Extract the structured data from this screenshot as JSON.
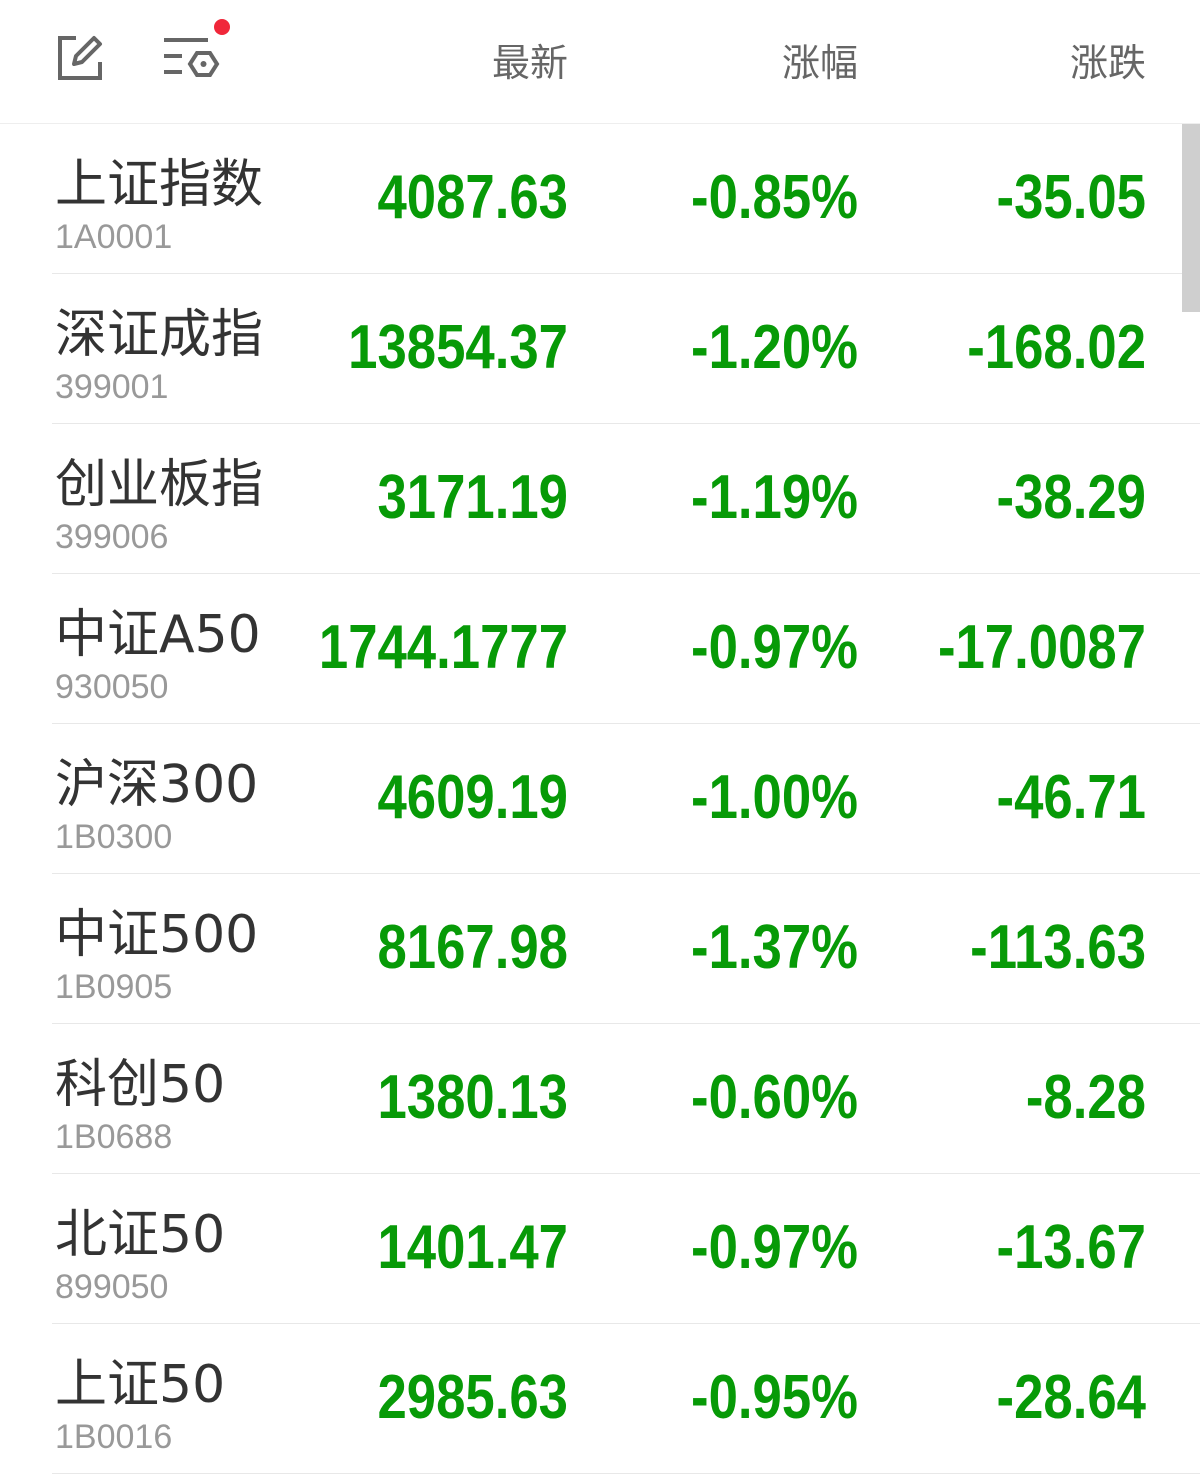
{
  "header": {
    "columns": [
      "最新",
      "涨幅",
      "涨跌"
    ],
    "notification_dot_color": "#f0273a",
    "icons": [
      "edit-icon",
      "filter-settings-icon"
    ]
  },
  "colors": {
    "down": "#079a07"
  },
  "rows": [
    {
      "name": "上证指数",
      "code": "1A0001",
      "latest": "4087.63",
      "pct": "-0.85%",
      "change": "-35.05"
    },
    {
      "name": "深证成指",
      "code": "399001",
      "latest": "13854.37",
      "pct": "-1.20%",
      "change": "-168.02"
    },
    {
      "name": "创业板指",
      "code": "399006",
      "latest": "3171.19",
      "pct": "-1.19%",
      "change": "-38.29"
    },
    {
      "name": "中证A50",
      "code": "930050",
      "latest": "1744.1777",
      "pct": "-0.97%",
      "change": "-17.0087"
    },
    {
      "name": "沪深300",
      "code": "1B0300",
      "latest": "4609.19",
      "pct": "-1.00%",
      "change": "-46.71"
    },
    {
      "name": "中证500",
      "code": "1B0905",
      "latest": "8167.98",
      "pct": "-1.37%",
      "change": "-113.63"
    },
    {
      "name": "科创50",
      "code": "1B0688",
      "latest": "1380.13",
      "pct": "-0.60%",
      "change": "-8.28"
    },
    {
      "name": "北证50",
      "code": "899050",
      "latest": "1401.47",
      "pct": "-0.97%",
      "change": "-13.67"
    },
    {
      "name": "上证50",
      "code": "1B0016",
      "latest": "2985.63",
      "pct": "-0.95%",
      "change": "-28.64"
    }
  ]
}
